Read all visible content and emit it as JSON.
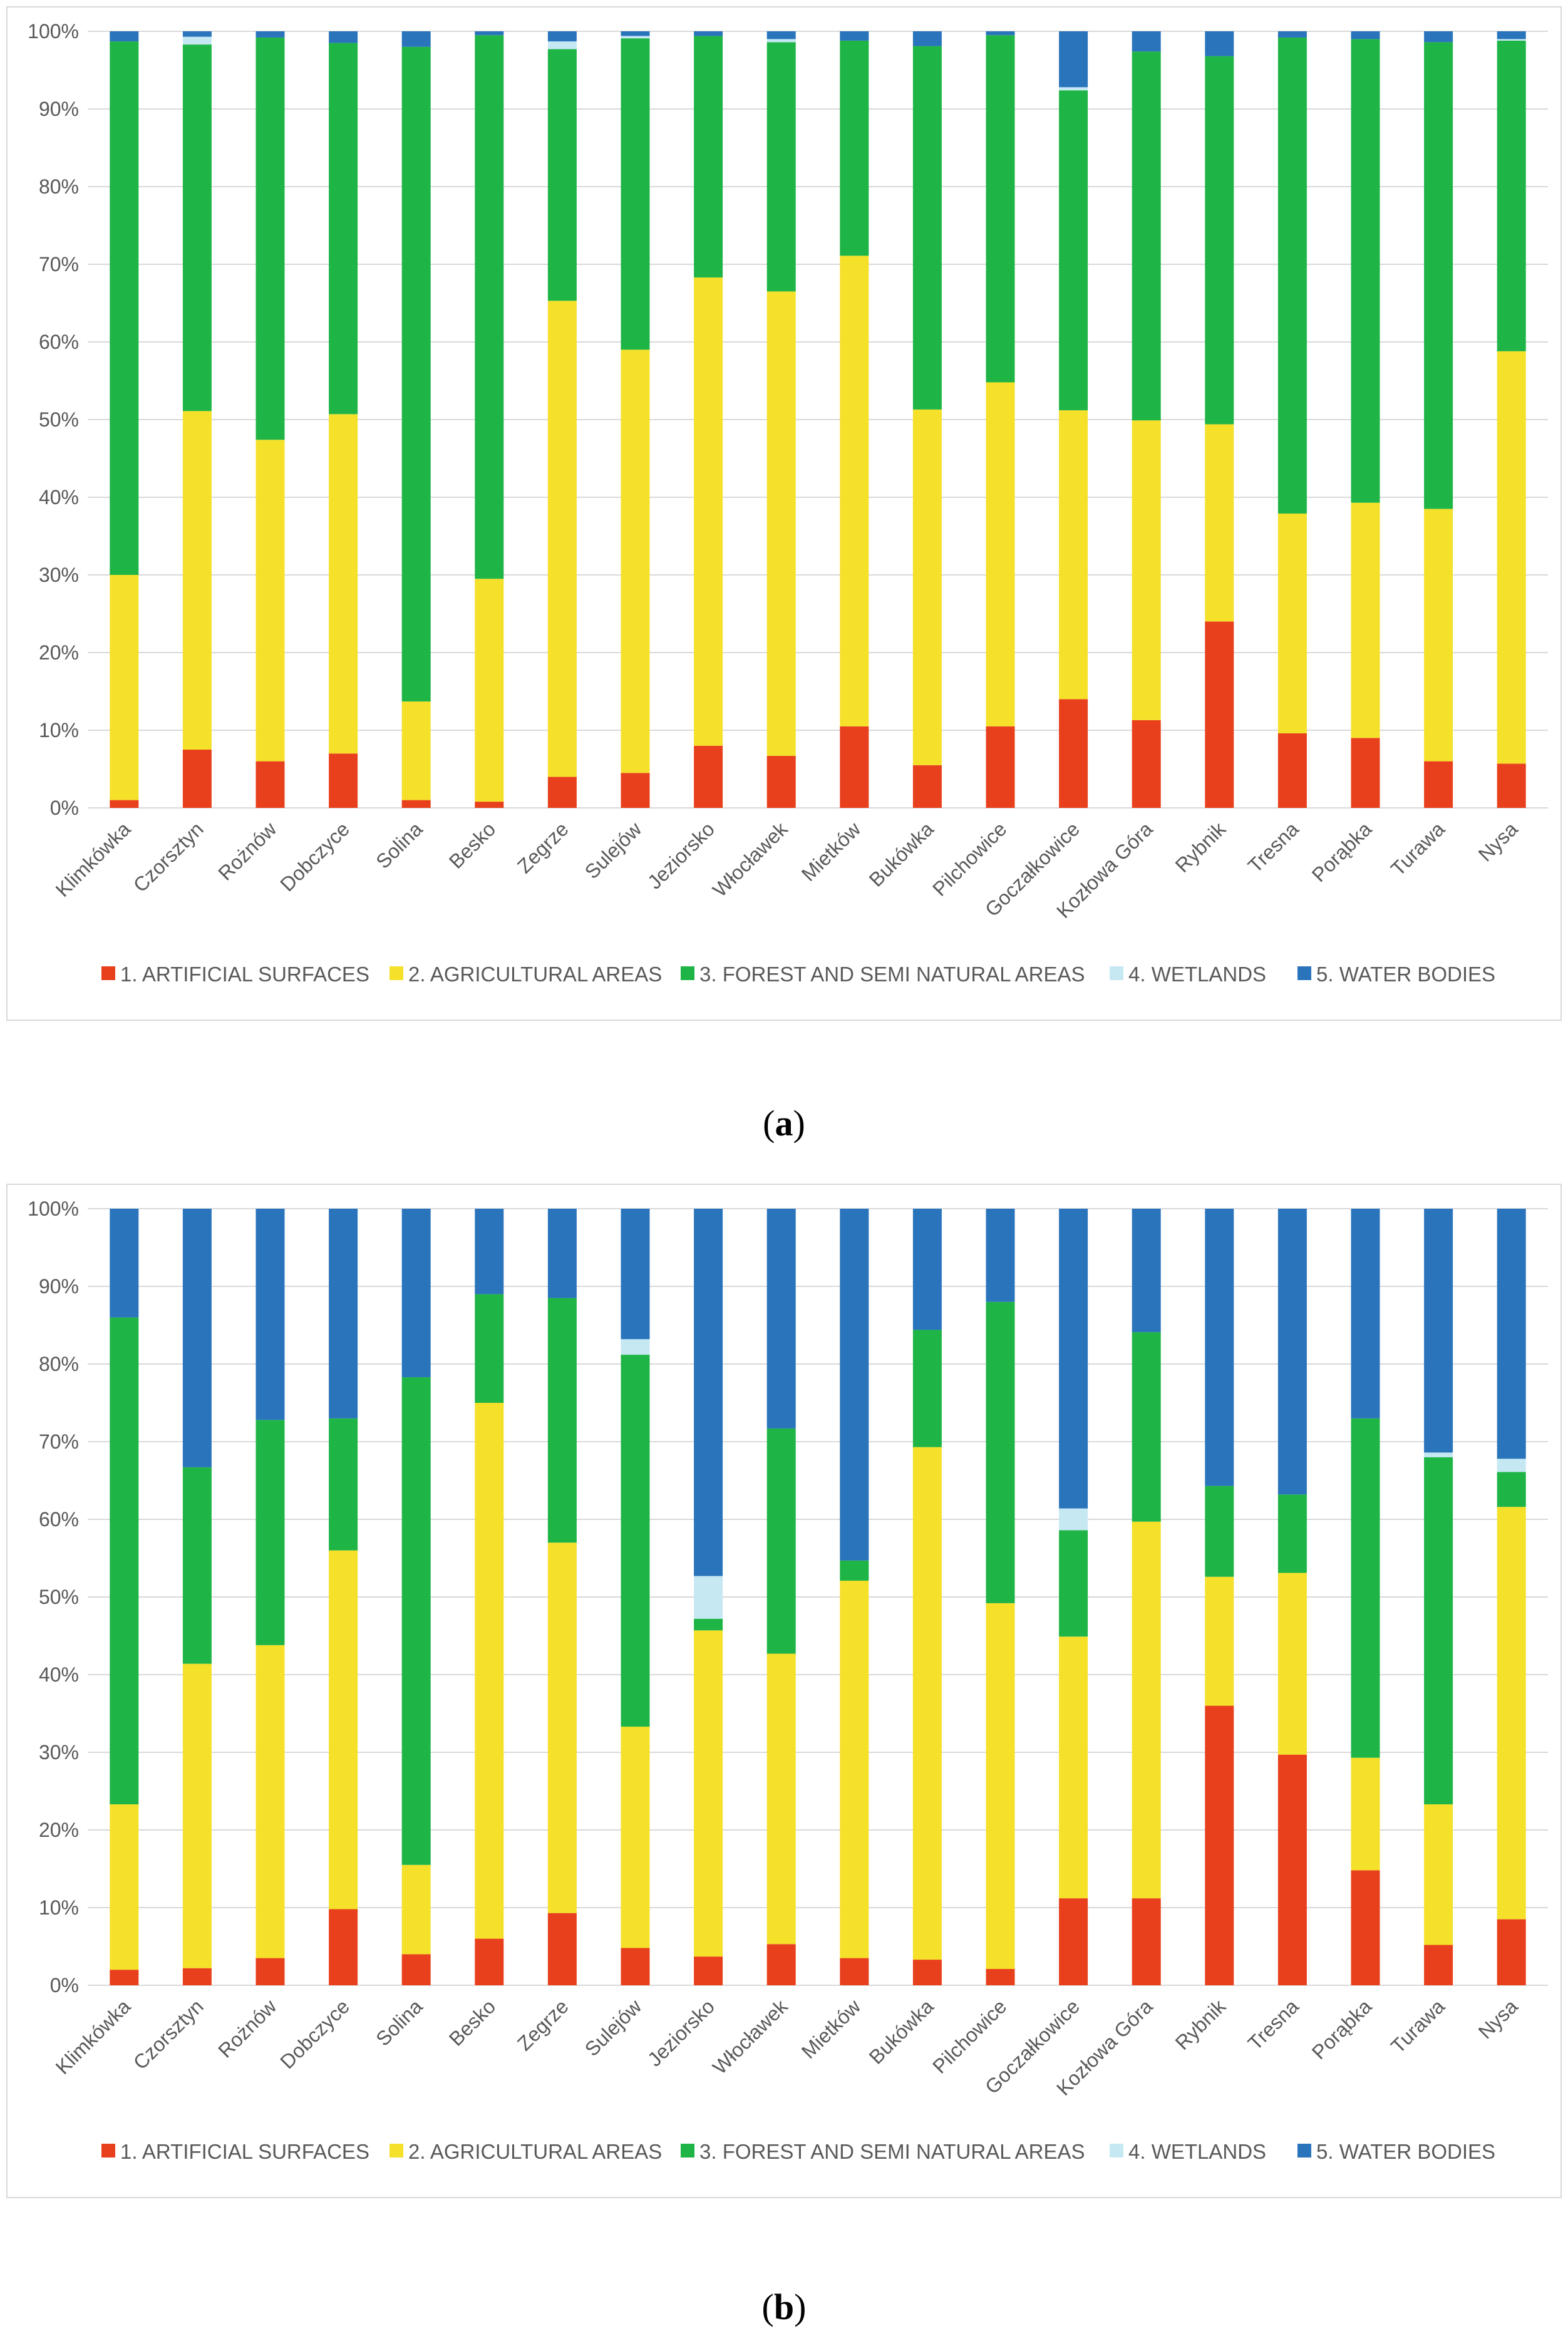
{
  "chart_data": [
    {
      "type": "bar",
      "stacked": true,
      "percent": true,
      "panel": "a",
      "title": "",
      "xlabel": "",
      "ylabel": "",
      "ylim": [
        0,
        100
      ],
      "yticks": [
        "0%",
        "10%",
        "20%",
        "30%",
        "40%",
        "50%",
        "60%",
        "70%",
        "80%",
        "90%",
        "100%"
      ],
      "legend_position": "bottom",
      "categories": [
        "Klimkówka",
        "Czorsztyn",
        "Rożnów",
        "Dobczyce",
        "Solina",
        "Besko",
        "Zegrze",
        "Sulejów",
        "Jeziorsko",
        "Włocławek",
        "Mietków",
        "Bukówka",
        "Pilchowice",
        "Goczałkowice",
        "Kozłowa Góra",
        "Rybnik",
        "Tresna",
        "Porąbka",
        "Turawa",
        "Nysa"
      ],
      "series": [
        {
          "name": "1. ARTIFICIAL SURFACES",
          "color": "#e8401c",
          "values": [
            1,
            7.5,
            6,
            7,
            1,
            0.8,
            4,
            4.5,
            8,
            6.7,
            10.5,
            5.5,
            10.5,
            14,
            11.3,
            24,
            9.6,
            9,
            6,
            5.7
          ]
        },
        {
          "name": "2. AGRICULTURAL AREAS",
          "color": "#f5e02a",
          "values": [
            29,
            43.6,
            41.4,
            43.7,
            12.7,
            28.7,
            61.3,
            54.5,
            60.3,
            59.8,
            60.6,
            45.8,
            44.3,
            37.2,
            38.6,
            25.4,
            28.3,
            30.3,
            32.5,
            53.1
          ]
        },
        {
          "name": "3.  FOREST AND SEMI NATURAL AREAS",
          "color": "#1fb546",
          "values": [
            68.7,
            47.2,
            51.8,
            47.8,
            84.3,
            70,
            32.4,
            40.1,
            31.1,
            32.1,
            27.7,
            46.8,
            44.7,
            41.2,
            47.5,
            47.4,
            61.3,
            59.7,
            60.1,
            40
          ]
        },
        {
          "name": "4. WETLANDS",
          "color": "#c5e8f3",
          "values": [
            0,
            1,
            0,
            0,
            0,
            0,
            1,
            0.3,
            0,
            0.4,
            0,
            0,
            0,
            0.4,
            0,
            0,
            0,
            0,
            0,
            0.2
          ]
        },
        {
          "name": "5. WATER BODIES",
          "color": "#2a74bc",
          "values": [
            1.3,
            0.7,
            0.8,
            1.5,
            2,
            0.5,
            1.3,
            0.6,
            0.6,
            1,
            1.2,
            1.9,
            0.5,
            7.2,
            2.6,
            3.2,
            0.8,
            1,
            1.4,
            1
          ]
        }
      ]
    },
    {
      "type": "bar",
      "stacked": true,
      "percent": true,
      "panel": "b",
      "title": "",
      "xlabel": "",
      "ylabel": "",
      "ylim": [
        0,
        100
      ],
      "yticks": [
        "0%",
        "10%",
        "20%",
        "30%",
        "40%",
        "50%",
        "60%",
        "70%",
        "80%",
        "90%",
        "100%"
      ],
      "legend_position": "bottom",
      "categories": [
        "Klimkówka",
        "Czorsztyn",
        "Rożnów",
        "Dobczyce",
        "Solina",
        "Besko",
        "Zegrze",
        "Sulejów",
        "Jeziorsko",
        "Włocławek",
        "Mietków",
        "Bukówka",
        "Pilchowice",
        "Goczałkowice",
        "Kozłowa Góra",
        "Rybnik",
        "Tresna",
        "Porąbka",
        "Turawa",
        "Nysa"
      ],
      "series": [
        {
          "name": "1. ARTIFICIAL SURFACES",
          "color": "#e8401c",
          "values": [
            2,
            2.2,
            3.5,
            9.8,
            4,
            6,
            9.3,
            4.8,
            3.7,
            5.3,
            3.5,
            3.3,
            2.1,
            11.2,
            11.2,
            36,
            29.7,
            14.8,
            5.2,
            8.5
          ]
        },
        {
          "name": "2. AGRICULTURAL AREAS",
          "color": "#f5e02a",
          "values": [
            21.3,
            39.2,
            40.3,
            46.2,
            11.5,
            69,
            47.7,
            28.5,
            42,
            37.4,
            48.6,
            66,
            47.1,
            33.7,
            48.5,
            16.6,
            23.4,
            14.5,
            18.1,
            53.1
          ]
        },
        {
          "name": "3.  FOREST AND SEMI NATURAL AREAS",
          "color": "#1fb546",
          "values": [
            62.7,
            25.3,
            29,
            17,
            62.8,
            14,
            31.5,
            47.9,
            1.5,
            29,
            2.6,
            15.1,
            38.8,
            13.7,
            24.4,
            11.7,
            10.1,
            43.7,
            44.7,
            4.5
          ]
        },
        {
          "name": "4. WETLANDS",
          "color": "#c5e8f3",
          "values": [
            0,
            0,
            0,
            0,
            0,
            0,
            0,
            2,
            5.5,
            0,
            0,
            0,
            0,
            2.8,
            0,
            0,
            0,
            0,
            0.6,
            1.7
          ]
        },
        {
          "name": "5. WATER BODIES",
          "color": "#2a74bc",
          "values": [
            14,
            33.3,
            27.2,
            27,
            21.7,
            11,
            11.5,
            16.8,
            47.3,
            28.3,
            45.3,
            15.6,
            12,
            38.6,
            15.9,
            35.7,
            36.8,
            27,
            31.4,
            32.2
          ]
        }
      ]
    }
  ],
  "captions": {
    "a": "a",
    "b": "b"
  }
}
